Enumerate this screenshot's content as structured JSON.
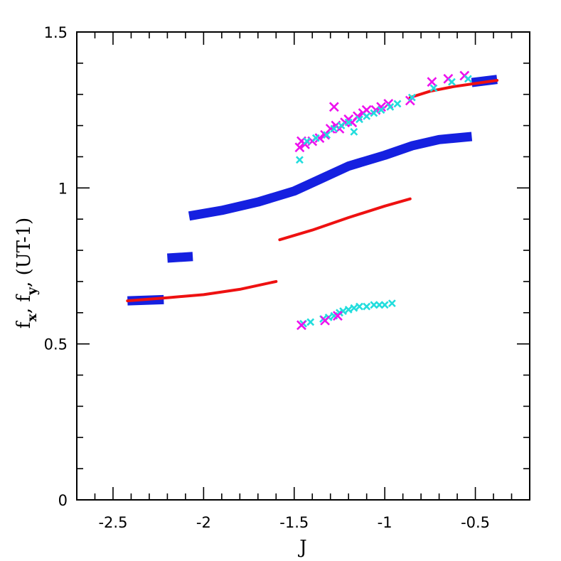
{
  "chart_data": {
    "type": "scatter",
    "title": "",
    "xlabel": "J",
    "ylabel": {
      "f_text": "f",
      "x_sub": "x",
      "comma1": ", ",
      "y_sub": "y",
      "units": ", (UT-1)"
    },
    "xlim": [
      -2.7,
      -0.2
    ],
    "ylim": [
      0,
      1.5
    ],
    "xticks": [
      -2.5,
      -2,
      -1.5,
      -1,
      -0.5
    ],
    "xtick_labels": [
      "-2.5",
      "-2",
      "-1.5",
      "-1",
      "-0.5"
    ],
    "yticks": [
      0,
      0.5,
      1,
      1.5
    ],
    "ytick_labels": [
      "0",
      "0.5",
      "1",
      "1.5"
    ],
    "x_minor_step": 0.1,
    "y_minor_step": 0.1,
    "colors": {
      "blue": "#1520e0",
      "red": "#ee1111",
      "magenta": "#ee11ee",
      "cyan": "#22dddd"
    },
    "series": [
      {
        "name": "blue-band-1",
        "kind": "band",
        "color": "blue",
        "points": [
          [
            -2.42,
            0.638
          ],
          [
            -2.22,
            0.642
          ]
        ]
      },
      {
        "name": "blue-band-2",
        "kind": "band",
        "color": "blue",
        "points": [
          [
            -2.2,
            0.775
          ],
          [
            -2.06,
            0.78
          ]
        ]
      },
      {
        "name": "blue-band-3",
        "kind": "band",
        "color": "blue",
        "points": [
          [
            -2.08,
            0.91
          ],
          [
            -1.9,
            0.928
          ],
          [
            -1.7,
            0.955
          ],
          [
            -1.5,
            0.99
          ],
          [
            -1.35,
            1.03
          ],
          [
            -1.2,
            1.07
          ],
          [
            -1.0,
            1.105
          ],
          [
            -0.85,
            1.135
          ],
          [
            -0.7,
            1.155
          ],
          [
            -0.52,
            1.165
          ]
        ]
      },
      {
        "name": "blue-band-4",
        "kind": "band",
        "color": "blue",
        "points": [
          [
            -0.52,
            1.338
          ],
          [
            -0.38,
            1.348
          ]
        ]
      },
      {
        "name": "red-line-1",
        "kind": "line",
        "color": "red",
        "points": [
          [
            -2.42,
            0.638
          ],
          [
            -2.2,
            0.648
          ],
          [
            -2.0,
            0.658
          ],
          [
            -1.8,
            0.675
          ],
          [
            -1.6,
            0.7
          ]
        ]
      },
      {
        "name": "red-line-2",
        "kind": "line",
        "color": "red",
        "points": [
          [
            -1.58,
            0.834
          ],
          [
            -1.4,
            0.865
          ],
          [
            -1.2,
            0.905
          ],
          [
            -1.0,
            0.942
          ],
          [
            -0.86,
            0.965
          ]
        ]
      },
      {
        "name": "red-line-3",
        "kind": "line",
        "color": "red",
        "points": [
          [
            -0.86,
            1.29
          ],
          [
            -0.75,
            1.31
          ],
          [
            -0.62,
            1.325
          ],
          [
            -0.5,
            1.335
          ],
          [
            -0.38,
            1.345
          ]
        ]
      },
      {
        "name": "magenta-x-upper",
        "kind": "marker",
        "color": "magenta",
        "points": [
          [
            -1.47,
            1.13
          ],
          [
            -1.46,
            1.15
          ],
          [
            -1.44,
            1.14
          ],
          [
            -1.4,
            1.15
          ],
          [
            -1.36,
            1.16
          ],
          [
            -1.33,
            1.17
          ],
          [
            -1.3,
            1.19
          ],
          [
            -1.28,
            1.26
          ],
          [
            -1.27,
            1.2
          ],
          [
            -1.25,
            1.19
          ],
          [
            -1.22,
            1.21
          ],
          [
            -1.2,
            1.22
          ],
          [
            -1.18,
            1.21
          ],
          [
            -1.15,
            1.23
          ],
          [
            -1.12,
            1.24
          ],
          [
            -1.1,
            1.25
          ],
          [
            -1.05,
            1.25
          ],
          [
            -1.02,
            1.26
          ],
          [
            -0.98,
            1.27
          ],
          [
            -0.86,
            1.28
          ],
          [
            -0.74,
            1.34
          ],
          [
            -0.65,
            1.35
          ],
          [
            -0.56,
            1.36
          ]
        ]
      },
      {
        "name": "cyan-x-upper",
        "kind": "marker",
        "color": "cyan",
        "points": [
          [
            -1.47,
            1.09
          ],
          [
            -1.43,
            1.15
          ],
          [
            -1.38,
            1.16
          ],
          [
            -1.32,
            1.17
          ],
          [
            -1.28,
            1.19
          ],
          [
            -1.24,
            1.2
          ],
          [
            -1.2,
            1.21
          ],
          [
            -1.17,
            1.18
          ],
          [
            -1.14,
            1.22
          ],
          [
            -1.1,
            1.23
          ],
          [
            -1.06,
            1.24
          ],
          [
            -1.02,
            1.25
          ],
          [
            -0.97,
            1.26
          ],
          [
            -0.93,
            1.27
          ],
          [
            -0.85,
            1.29
          ],
          [
            -0.73,
            1.32
          ],
          [
            -0.63,
            1.34
          ],
          [
            -0.54,
            1.35
          ]
        ]
      },
      {
        "name": "cyan-x-lower",
        "kind": "marker",
        "color": "cyan",
        "points": [
          [
            -1.45,
            0.565
          ],
          [
            -1.41,
            0.57
          ],
          [
            -1.34,
            0.58
          ],
          [
            -1.31,
            0.585
          ],
          [
            -1.28,
            0.59
          ],
          [
            -1.25,
            0.6
          ],
          [
            -1.23,
            0.605
          ],
          [
            -1.2,
            0.61
          ],
          [
            -1.17,
            0.615
          ],
          [
            -1.14,
            0.62
          ],
          [
            -1.1,
            0.62
          ],
          [
            -1.06,
            0.625
          ],
          [
            -1.03,
            0.625
          ],
          [
            -1.0,
            0.625
          ],
          [
            -0.96,
            0.63
          ]
        ]
      },
      {
        "name": "magenta-x-lower",
        "kind": "marker",
        "color": "magenta",
        "points": [
          [
            -1.46,
            0.56
          ],
          [
            -1.33,
            0.575
          ],
          [
            -1.26,
            0.59
          ]
        ]
      }
    ]
  }
}
